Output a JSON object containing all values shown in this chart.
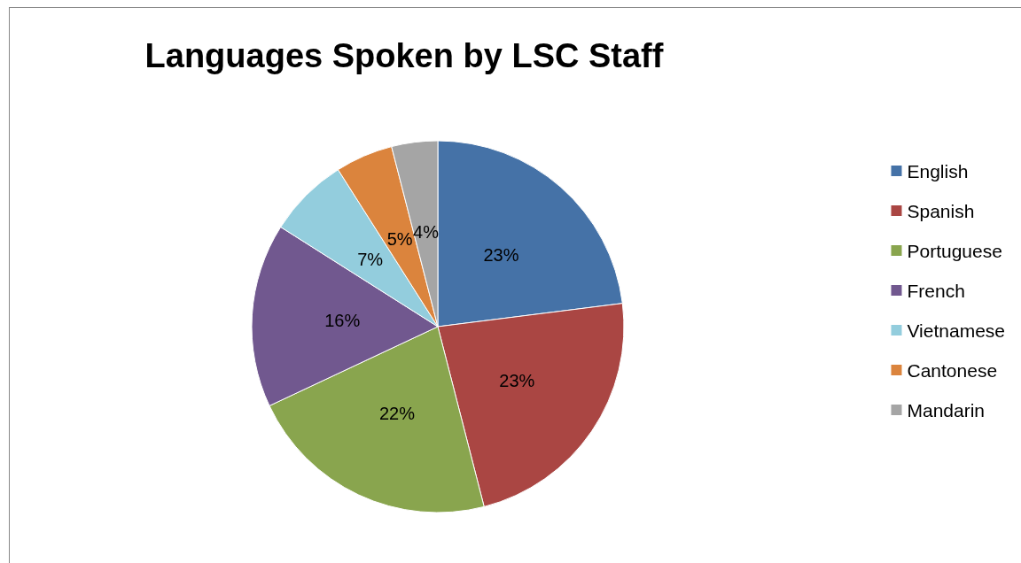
{
  "chart_data": {
    "type": "pie",
    "title": "Languages Spoken by LSC Staff",
    "categories": [
      "English",
      "Spanish",
      "Portuguese",
      "French",
      "Vietnamese",
      "Cantonese",
      "Mandarin"
    ],
    "values": [
      23,
      23,
      22,
      16,
      7,
      5,
      4
    ],
    "value_labels": [
      "23%",
      "23%",
      "22%",
      "16%",
      "7%",
      "5%",
      "4%"
    ],
    "colors": [
      "#4572a7",
      "#aa4643",
      "#89a54e",
      "#71588f",
      "#93cddd",
      "#db843d",
      "#a5a5a5"
    ],
    "legend": "right"
  }
}
